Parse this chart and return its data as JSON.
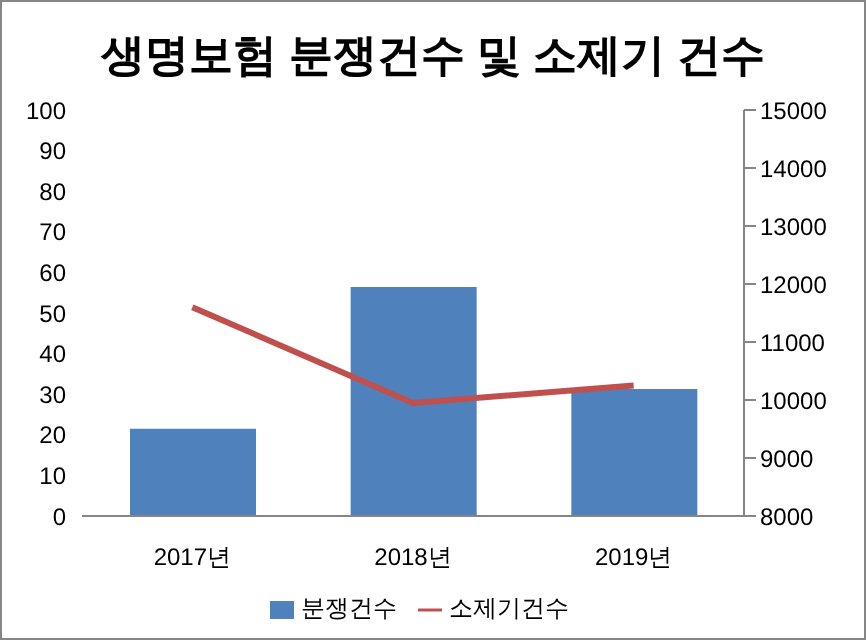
{
  "chart_data": {
    "type": "bar",
    "title": "생명보험 분쟁건수 및 소제기 건수",
    "categories": [
      "2017년",
      "2018년",
      "2019년"
    ],
    "series": [
      {
        "name": "분쟁건수",
        "color": "#4f81bd",
        "values": [
          21.5,
          56.4,
          31.3
        ]
      },
      {
        "name": "소제기건수",
        "type": "line",
        "axis": "y2",
        "color": "#c0504d",
        "values": [
          11600,
          9950,
          10250
        ]
      }
    ],
    "ylim": [
      0,
      100
    ],
    "yticks": [
      0,
      10,
      20,
      30,
      40,
      50,
      60,
      70,
      80,
      90,
      100
    ],
    "y2lim": [
      8000,
      15000
    ],
    "y2ticks": [
      8000,
      9000,
      10000,
      11000,
      12000,
      13000,
      14000,
      15000
    ],
    "grid": false,
    "legend": "bottom",
    "marker": "none"
  }
}
